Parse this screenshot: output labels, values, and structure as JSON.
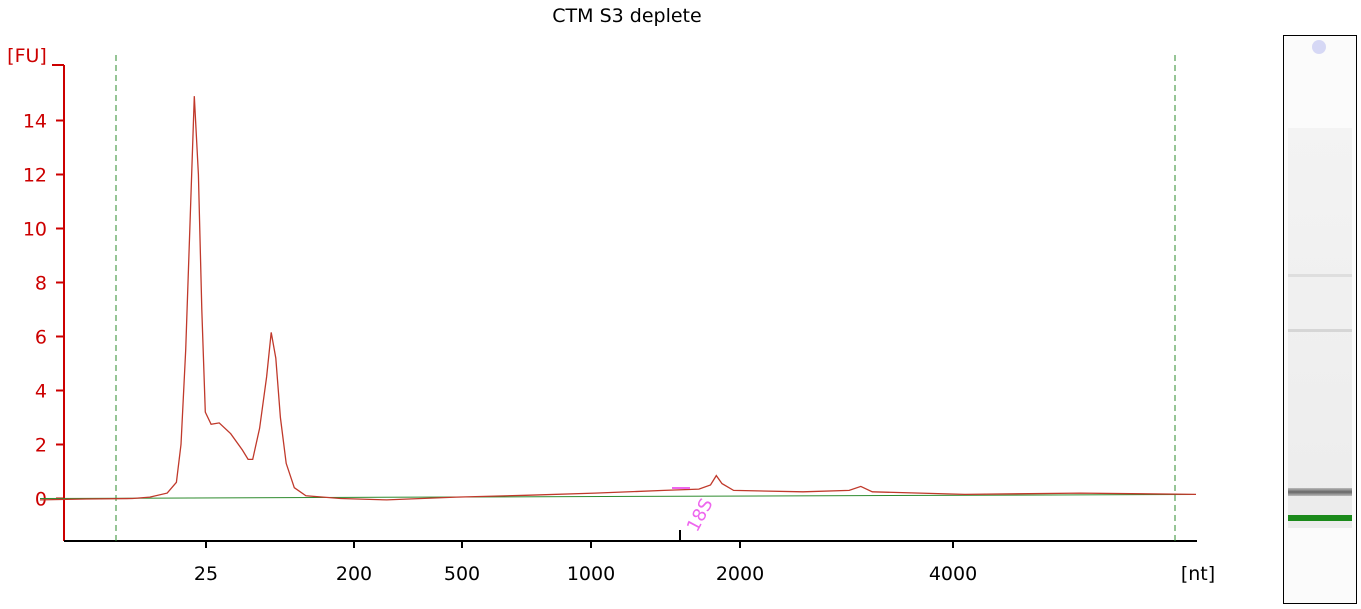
{
  "chart_data": {
    "type": "line",
    "title": "CTM S3 deplete",
    "ylabel": "[FU]",
    "xlabel": "[nt]",
    "ylim": [
      -1.5,
      16
    ],
    "y_ticks": [
      0,
      2,
      4,
      6,
      8,
      10,
      12,
      14
    ],
    "x_ticks": [
      "25",
      "200",
      "500",
      "1000",
      "2000",
      "4000"
    ],
    "x_tick_positions_fraction": null,
    "grid": false,
    "peak_label": "18S",
    "series": [
      {
        "name": "",
        "x_pixel_free_values_note": null,
        "points_nt_index": [
          [
            0.0,
            -0.05
          ],
          [
            0.04,
            -0.02
          ],
          [
            0.08,
            0.0
          ],
          [
            0.095,
            0.05
          ],
          [
            0.11,
            0.2
          ],
          [
            0.118,
            0.6
          ],
          [
            0.122,
            2.0
          ],
          [
            0.126,
            5.5
          ],
          [
            0.13,
            10.5
          ],
          [
            0.1335,
            14.9
          ],
          [
            0.137,
            12.0
          ],
          [
            0.14,
            7.0
          ],
          [
            0.143,
            3.2
          ],
          [
            0.148,
            2.75
          ],
          [
            0.155,
            2.8
          ],
          [
            0.165,
            2.4
          ],
          [
            0.175,
            1.8
          ],
          [
            0.18,
            1.45
          ],
          [
            0.184,
            1.45
          ],
          [
            0.19,
            2.6
          ],
          [
            0.196,
            4.5
          ],
          [
            0.2,
            6.15
          ],
          [
            0.204,
            5.2
          ],
          [
            0.208,
            3.0
          ],
          [
            0.213,
            1.3
          ],
          [
            0.22,
            0.4
          ],
          [
            0.23,
            0.1
          ],
          [
            0.26,
            0.0
          ],
          [
            0.3,
            -0.05
          ],
          [
            0.36,
            0.05
          ],
          [
            0.42,
            0.12
          ],
          [
            0.48,
            0.2
          ],
          [
            0.54,
            0.3
          ],
          [
            0.57,
            0.35
          ],
          [
            0.58,
            0.5
          ],
          [
            0.585,
            0.85
          ],
          [
            0.59,
            0.55
          ],
          [
            0.6,
            0.3
          ],
          [
            0.66,
            0.25
          ],
          [
            0.7,
            0.3
          ],
          [
            0.71,
            0.45
          ],
          [
            0.72,
            0.25
          ],
          [
            0.8,
            0.15
          ],
          [
            0.9,
            0.2
          ],
          [
            1.0,
            0.15
          ]
        ]
      }
    ],
    "baseline": [
      [
        0.0,
        0.0
      ],
      [
        1.0,
        0.15
      ]
    ]
  },
  "gel": {
    "marker_color": "#1a8a1a"
  }
}
